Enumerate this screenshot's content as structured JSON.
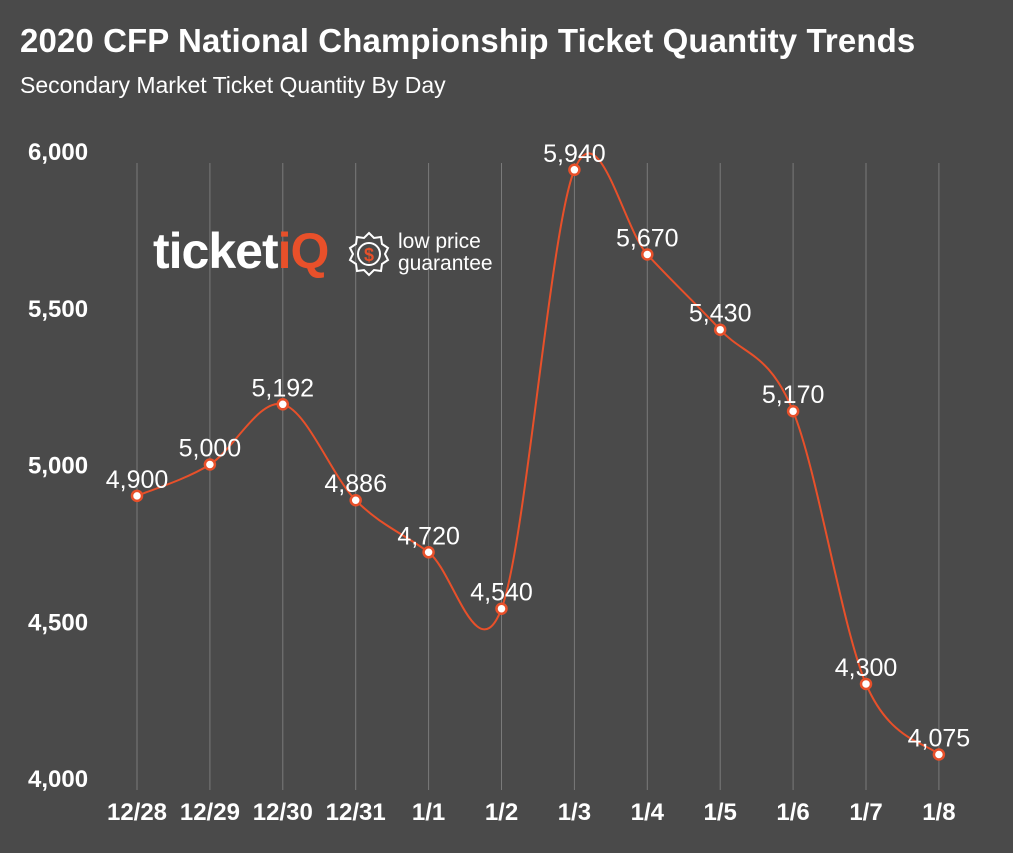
{
  "title": "2020 CFP National Championship Ticket Quantity Trends",
  "subtitle": "Secondary Market Ticket Quantity By Day",
  "brand": {
    "name_main": "ticket",
    "name_accent": "iQ",
    "tagline_line1": "low price",
    "tagline_line2": "guarantee",
    "icon": "dollar-shield-icon"
  },
  "colors": {
    "background": "#4a4a4a",
    "line": "#e8502a",
    "gridline": "#7a7a7a",
    "text": "#ffffff"
  },
  "chart_data": {
    "type": "line",
    "title": "2020 CFP National Championship Ticket Quantity Trends",
    "subtitle": "Secondary Market Ticket Quantity By Day",
    "categories": [
      "12/28",
      "12/29",
      "12/30",
      "12/31",
      "1/1",
      "1/2",
      "1/3",
      "1/4",
      "1/5",
      "1/6",
      "1/7",
      "1/8"
    ],
    "series": [
      {
        "values": [
          4900,
          5000,
          5192,
          4886,
          4720,
          4540,
          5940,
          5670,
          5430,
          5170,
          4300,
          4075
        ],
        "labels": [
          "4,900",
          "5,000",
          "5,192",
          "4,886",
          "4,720",
          "4,540",
          "5,940",
          "5,670",
          "5,430",
          "5,170",
          "4,300",
          "4,075"
        ]
      }
    ],
    "ylim": [
      4000,
      6000
    ],
    "yticks": [
      4000,
      4500,
      5000,
      5500,
      6000
    ],
    "ytick_labels": [
      "4,000",
      "4,500",
      "5,000",
      "5,500",
      "6,000"
    ],
    "xlabel": "",
    "ylabel": "",
    "grid": "vertical",
    "legend": "none",
    "smooth": true
  }
}
